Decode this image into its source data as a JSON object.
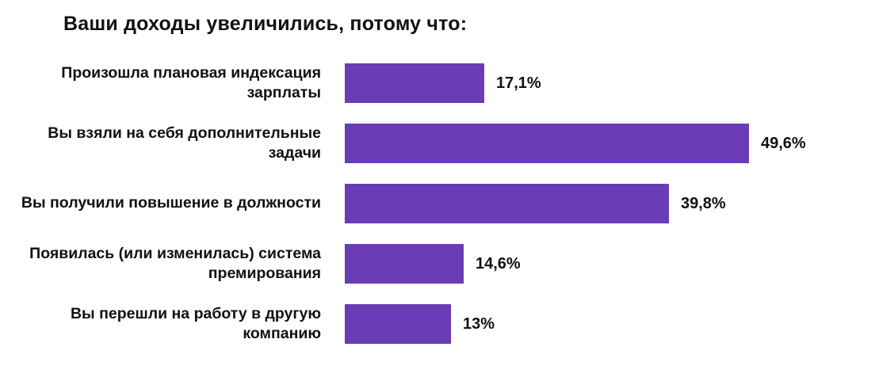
{
  "header": {
    "title": "Ваши доходы увеличились, потому что:"
  },
  "colors": {
    "bar": "#6a3cb5",
    "text": "#111111",
    "background": "#ffffff"
  },
  "chart_data": {
    "type": "bar",
    "orientation": "horizontal",
    "title": "Ваши доходы увеличились, потому что:",
    "categories": [
      "Произошла плановая индексация зарплаты",
      "Вы взяли на себя дополнительные задачи",
      "Вы получили повышение в должности",
      "Появилась (или изменилась) система премирования",
      "Вы перешли на работу в другую компанию"
    ],
    "values": [
      17.1,
      49.6,
      39.8,
      14.6,
      13
    ],
    "value_labels": [
      "17,1%",
      "49,6%",
      "39,8%",
      "14,6%",
      "13%"
    ],
    "xlabel": "",
    "ylabel": "",
    "xlim": [
      0,
      52
    ],
    "grid": false,
    "legend": "none"
  }
}
